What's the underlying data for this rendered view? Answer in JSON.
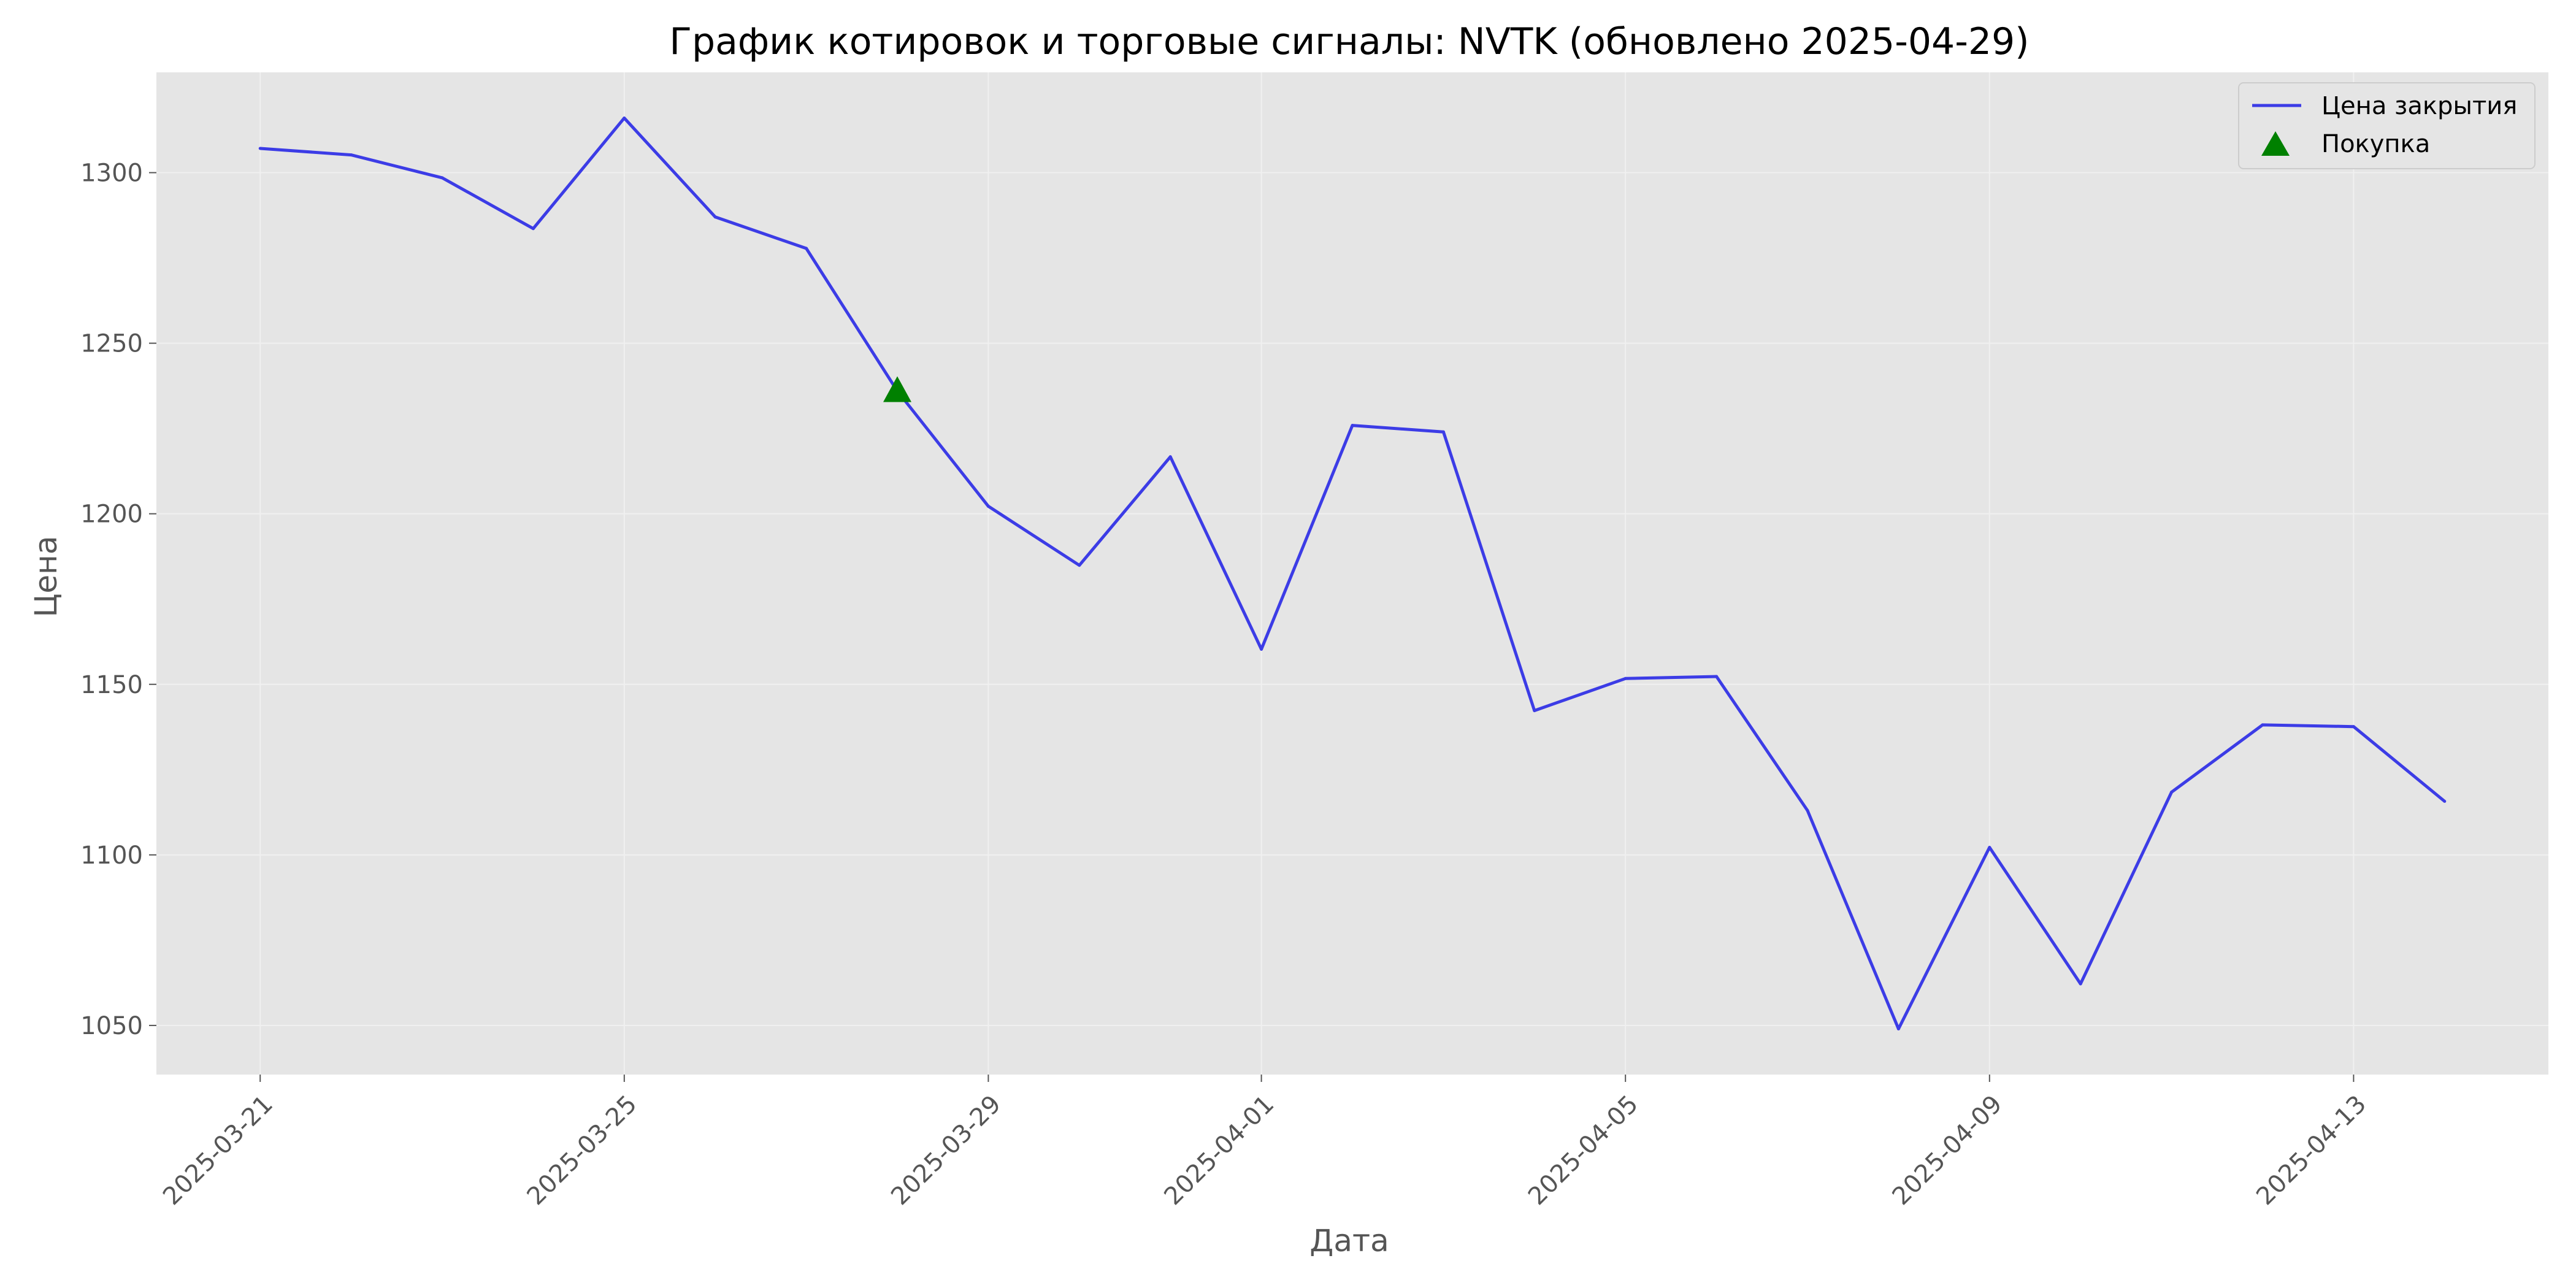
{
  "chart_data": {
    "type": "line",
    "title": "График котировок и торговые сигналы: NVTK (обновлено 2025-04-29)",
    "xlabel": "Дата",
    "ylabel": "Цена",
    "x": [
      "2025-03-21",
      "2025-03-22",
      "2025-03-23",
      "2025-03-24",
      "2025-03-25",
      "2025-03-26",
      "2025-03-27",
      "2025-03-28",
      "2025-03-29",
      "2025-03-30",
      "2025-03-31",
      "2025-04-01",
      "2025-04-02",
      "2025-04-03",
      "2025-04-04",
      "2025-04-05",
      "2025-04-06",
      "2025-04-07",
      "2025-04-08",
      "2025-04-09",
      "2025-04-10",
      "2025-04-11",
      "2025-04-12",
      "2025-04-13",
      "2025-04-14"
    ],
    "series": [
      {
        "name": "Цена закрытия",
        "color": "#3c3ce6",
        "values": [
          1307.1,
          1305.2,
          1298.5,
          1283.6,
          1316.0,
          1287.0,
          1277.8,
          1236.0,
          1202.2,
          1184.9,
          1216.7,
          1160.3,
          1225.9,
          1224.0,
          1142.3,
          1151.7,
          1152.3,
          1113.0,
          1049.0,
          1102.2,
          1062.2,
          1118.4,
          1138.1,
          1137.6,
          1115.7
        ]
      }
    ],
    "signals": [
      {
        "name": "Покупка",
        "color": "#008000",
        "marker": "triangle-up",
        "points": [
          {
            "x": "2025-03-28",
            "y": 1236.0
          }
        ]
      }
    ],
    "x_ticks": [
      "2025-03-21",
      "2025-03-25",
      "2025-03-29",
      "2025-04-01",
      "2025-04-05",
      "2025-04-09",
      "2025-04-13"
    ],
    "y_ticks": [
      1050,
      1100,
      1150,
      1200,
      1250,
      1300
    ],
    "xlim": [
      "2025-03-19T20:38",
      "2025-04-15T03:22"
    ],
    "ylim": [
      1035.6,
      1329.4
    ],
    "grid": true,
    "legend_position": "top-right",
    "plot_background": "#e5e5e5"
  }
}
